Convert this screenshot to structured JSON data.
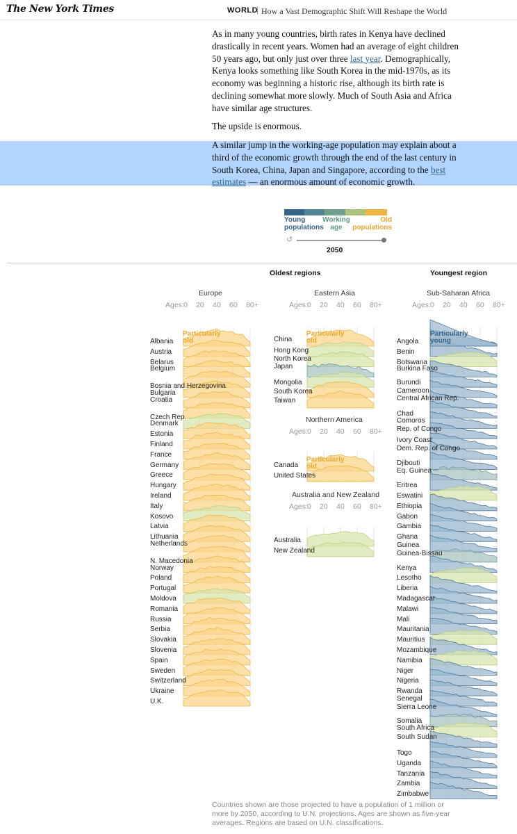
{
  "header": {
    "logo": "The New York Times",
    "section": "WORLD",
    "separator": "|",
    "headline": "How a Vast Demographic Shift Will Reshape the World"
  },
  "article": {
    "p1_a": "As in many young countries, birth rates in Kenya have declined drastically in recent years. Women had an average of eight children 50 years ago, but only just over three ",
    "p1_link": "last year",
    "p1_b": ". Demographically, Kenya looks something like South Korea in the mid-1970s, as its economy was beginning a historic rise, although its birth rate is declining somewhat more slowly. Much of South Asia and Africa have similar age structures.",
    "p2": "The upside is enormous.",
    "p3_a": "A similar jump in the working-age population may explain about a third of the economic growth through the end of the last century in South Korea, China, Japan and Singapore, according to the ",
    "p3_link": "best estimates",
    "p3_b": " — an enormous amount of economic growth."
  },
  "legend": {
    "young": "Young populations",
    "working": "Working age",
    "old": "Old populations",
    "year": "2050",
    "colors": [
      "#35658a",
      "#4f8795",
      "#6fa18d",
      "#a9c47a",
      "#d6c770",
      "#f0b440"
    ]
  },
  "chart": {
    "oldest_title": "Oldest regions",
    "youngest_title": "Youngest region",
    "ages_prefix": "Ages:",
    "age_ticks": [
      "0",
      "20",
      "40",
      "60",
      "80+"
    ],
    "old_anno": "Particularly old",
    "young_anno": "Particularly young",
    "europe": {
      "name": "Europe",
      "countries": [
        "Albania",
        "Austria",
        "Belarus",
        "Belgium",
        "Bosnia and Herzegovina",
        "Bulgaria",
        "Croatia",
        "Czech Rep.",
        "Denmark",
        "Estonia",
        "Finland",
        "France",
        "Germany",
        "Greece",
        "Hungary",
        "Ireland",
        "Italy",
        "Kosovo",
        "Latvia",
        "Lithuania",
        "Netherlands",
        "N. Macedonia",
        "Norway",
        "Poland",
        "Portugal",
        "Moldova",
        "Romania",
        "Russia",
        "Serbia",
        "Slovakia",
        "Slovenia",
        "Spain",
        "Sweden",
        "Switzerland",
        "Ukraine",
        "U.K."
      ]
    },
    "eastern_asia": {
      "name": "Eastern Asia",
      "countries": [
        "China",
        "Hong Kong",
        "North Korea",
        "Japan",
        "Mongolia",
        "South Korea",
        "Taiwan"
      ]
    },
    "northern_america": {
      "name": "Northern America",
      "countries": [
        "Canada",
        "United States"
      ]
    },
    "australia_nz": {
      "name": "Australia and New Zealand",
      "countries": [
        "Australia",
        "New Zealand"
      ]
    },
    "ssa": {
      "name": "Sub-Saharan Africa",
      "countries": [
        "Angola",
        "Benin",
        "Botswana",
        "Burkina Faso",
        "Burundi",
        "Cameroon",
        "Central African Rep.",
        "Chad",
        "Comoros",
        "Rep. of Congo",
        "Ivory Coast",
        "Dem. Rep. of Congo",
        "Djibouti",
        "Eq. Guinea",
        "Eritrea",
        "Eswatini",
        "Ethiopia",
        "Gabon",
        "Gambia",
        "Ghana",
        "Guinea",
        "Guinea-Bissau",
        "Kenya",
        "Lesotho",
        "Liberia",
        "Madagascar",
        "Malawi",
        "Mali",
        "Mauritania",
        "Mauritius",
        "Mozambique",
        "Namibia",
        "Niger",
        "Nigeria",
        "Rwanda",
        "Senegal",
        "Sierra Leone",
        "Somalia",
        "South Africa",
        "South Sudan",
        "Togo",
        "Uganda",
        "Tanzania",
        "Zambia",
        "Zimbabwe"
      ]
    }
  },
  "footnote": "Countries shown are those projected to have a population of 1 million or more by 2050, according to U.N. projections. Ages are shown as five-year averages. Regions are based on U.N. classifications."
}
